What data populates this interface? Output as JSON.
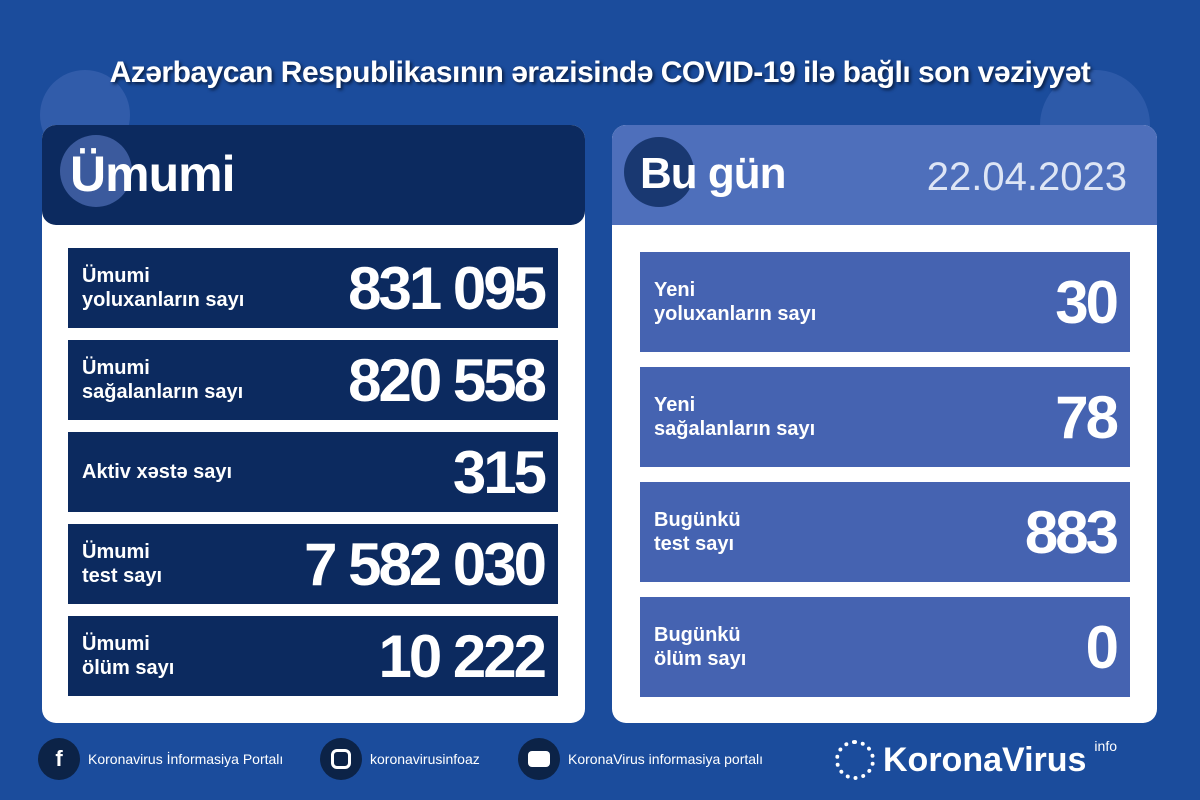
{
  "title": "Azərbaycan Respublikasının ərazisində COVID-19 ilə bağlı son vəziyyət",
  "colors": {
    "background": "#1b4c9c",
    "navy": "#0c2a5f",
    "today_row": "#4563b1",
    "today_header": "#4e6fbb"
  },
  "total": {
    "heading": "Ümumi",
    "rows": [
      {
        "label1": "Ümumi",
        "label2": "yoluxanların sayı",
        "value": "831 095"
      },
      {
        "label1": "Ümumi",
        "label2": "sağalanların sayı",
        "value": "820 558"
      },
      {
        "label1": "Aktiv xəstə sayı",
        "label2": "",
        "value": "315"
      },
      {
        "label1": "Ümumi",
        "label2": "test sayı",
        "value": "7 582 030"
      },
      {
        "label1": "Ümumi",
        "label2": "ölüm sayı",
        "value": "10 222"
      }
    ]
  },
  "today": {
    "heading": "Bu gün",
    "date": "22.04.2023",
    "rows": [
      {
        "label1": "Yeni",
        "label2": "yoluxanların sayı",
        "value": "30"
      },
      {
        "label1": "Yeni",
        "label2": "sağalanların sayı",
        "value": "78"
      },
      {
        "label1": "Bugünkü",
        "label2": "test sayı",
        "value": "883"
      },
      {
        "label1": "Bugünkü",
        "label2": "ölüm sayı",
        "value": "0"
      }
    ]
  },
  "footer": {
    "facebook": "Koronavirus İnformasiya Portalı",
    "instagram": "koronavirusinfoaz",
    "youtube": "KoronaVirus informasiya portalı",
    "logo": "KoronaVirus",
    "logo_sup": "info",
    "icons": [
      "facebook-icon",
      "instagram-icon",
      "youtube-icon",
      "sun-virus-icon"
    ]
  }
}
